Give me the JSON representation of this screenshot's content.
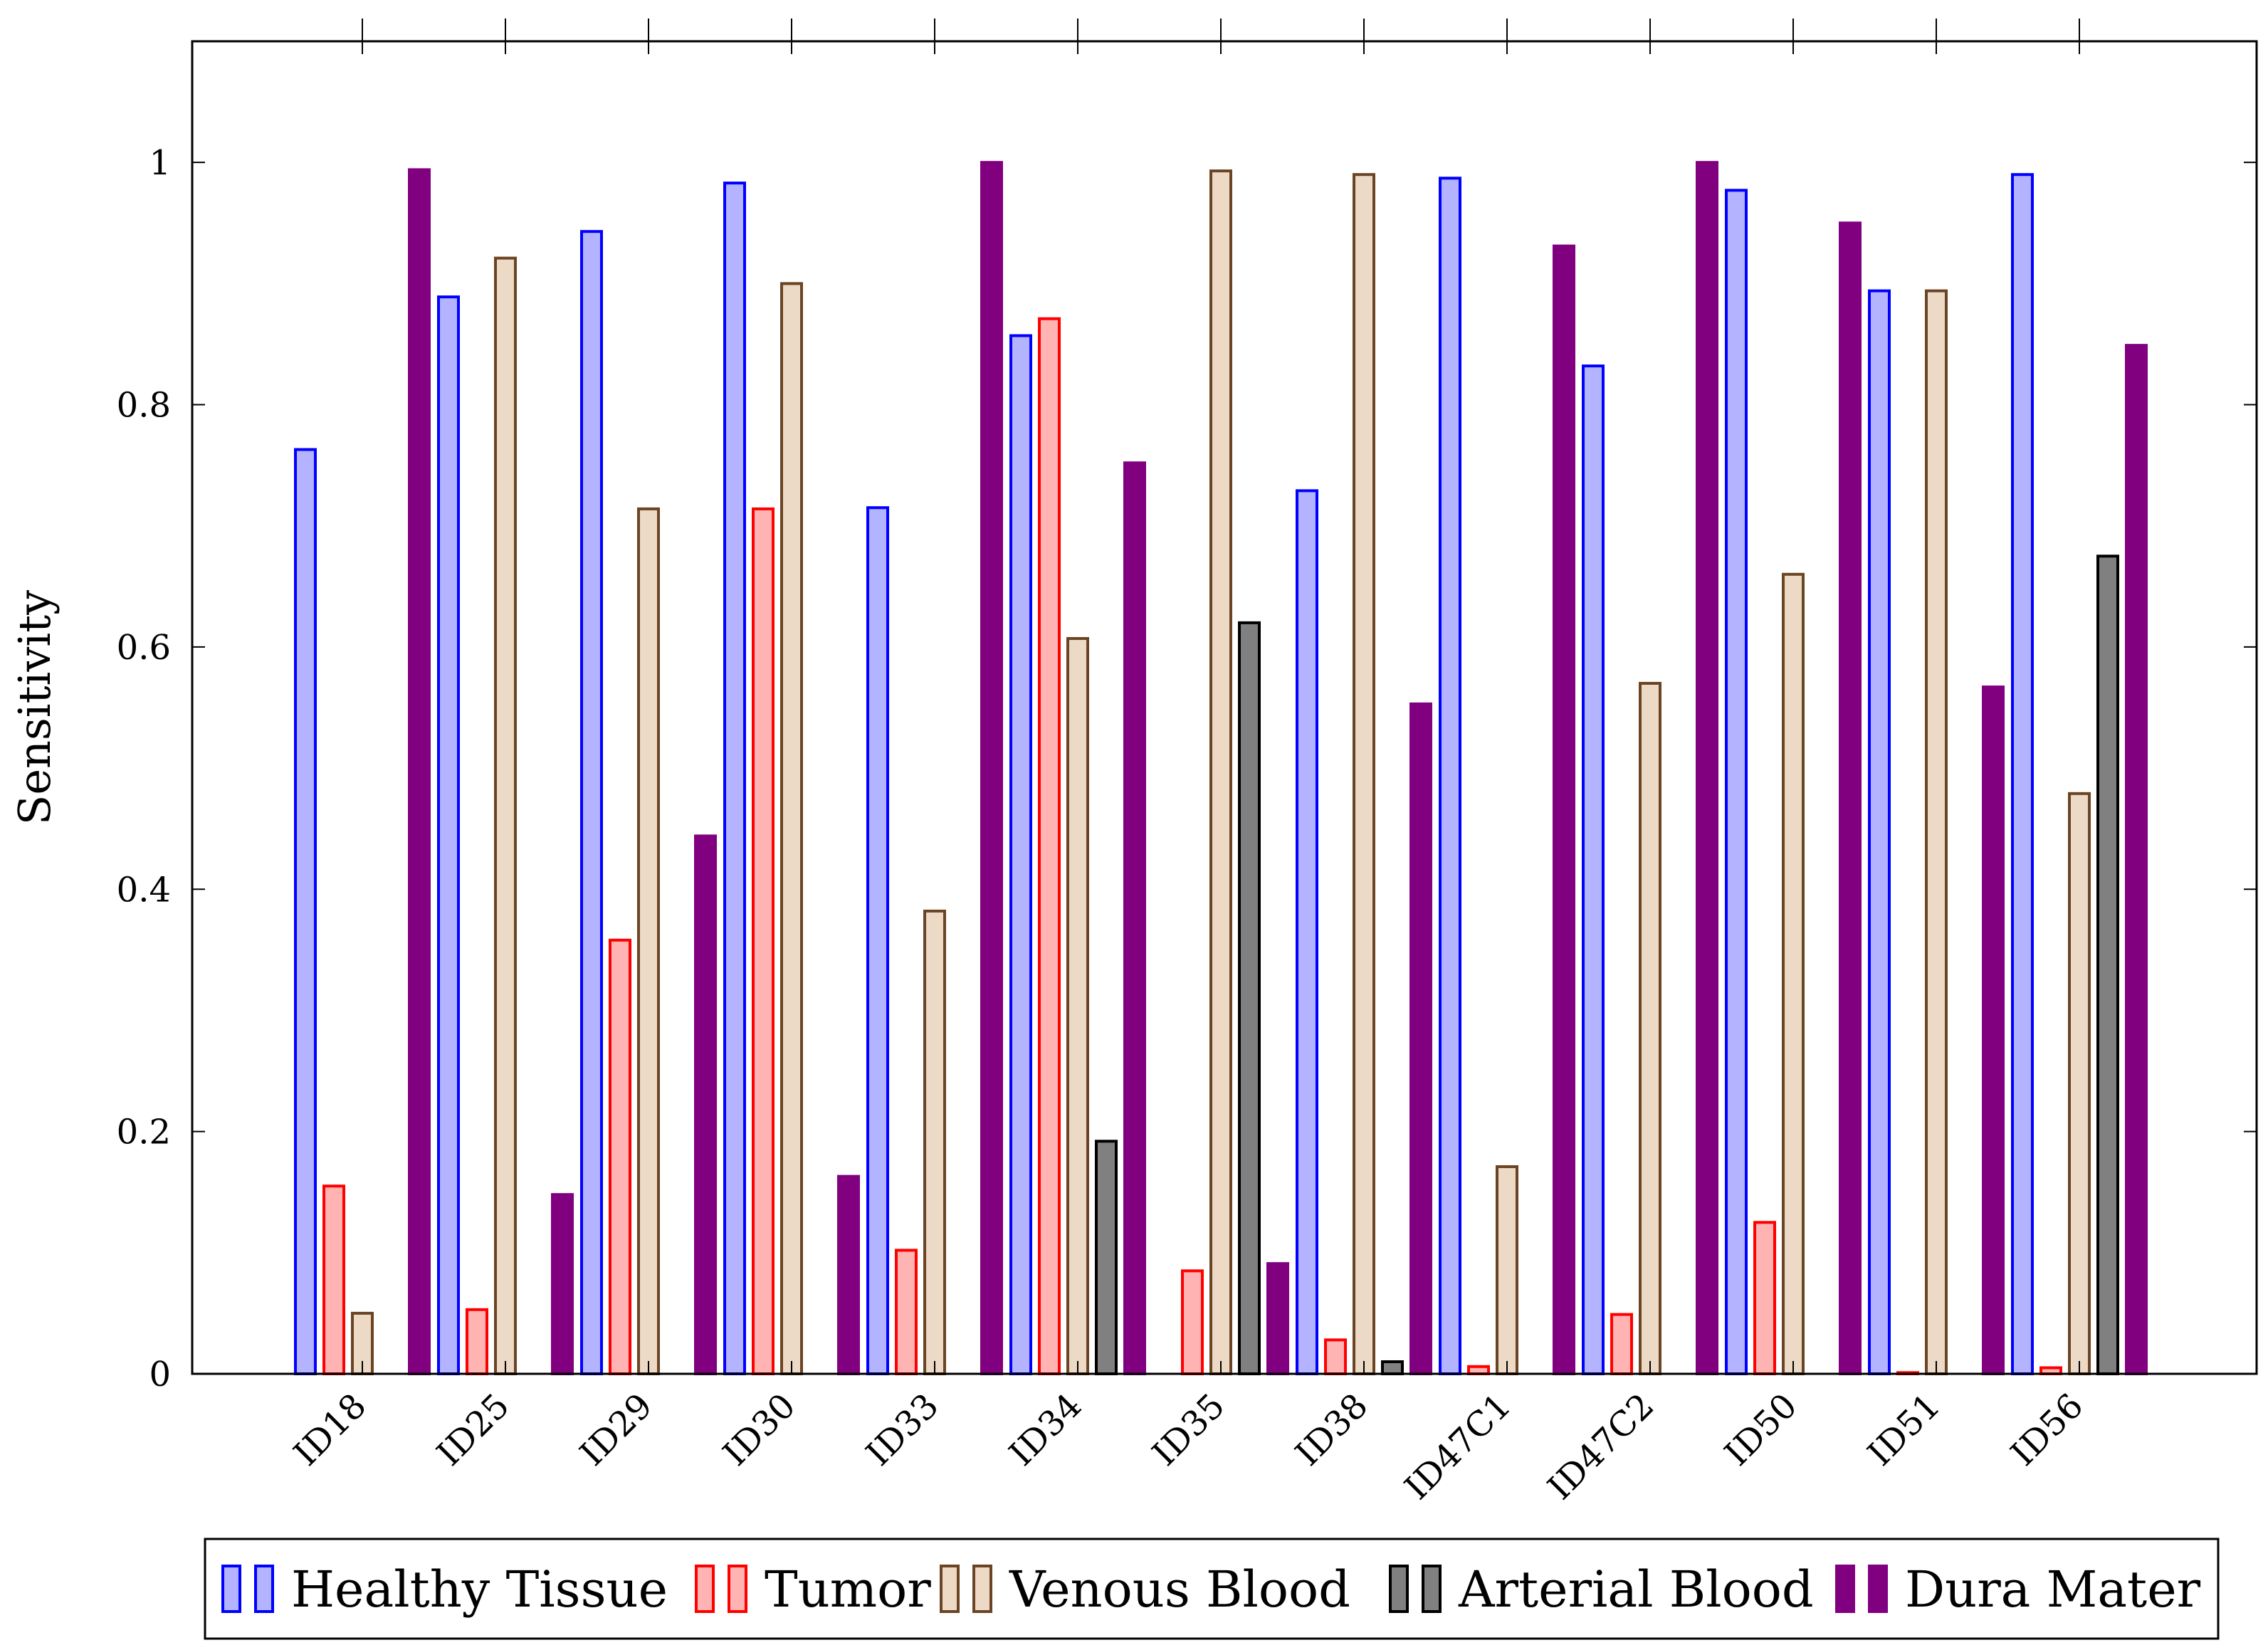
{
  "chart_data": {
    "type": "bar",
    "title": "",
    "xlabel": "",
    "ylabel": "Sensitivity",
    "ylim": [
      0,
      1.1
    ],
    "yticks": [
      0,
      0.2,
      0.4,
      0.6,
      0.8,
      1
    ],
    "ytick_labels": [
      "0",
      "0.2",
      "0.4",
      "0.6",
      "0.8",
      "1"
    ],
    "grid": false,
    "legend_position": "bottom",
    "categories": [
      "ID18",
      "ID25",
      "ID29",
      "ID30",
      "ID33",
      "ID34",
      "ID35",
      "ID38",
      "ID47C1",
      "ID47C2",
      "ID50",
      "ID51",
      "ID56"
    ],
    "series": [
      {
        "name": "Healthy Tissue",
        "fill": "#b3b3ff",
        "stroke": "#0000ff",
        "values": [
          0.763,
          0.889,
          0.943,
          0.983,
          0.715,
          0.857,
          0,
          0.729,
          0.987,
          0.832,
          0.977,
          0.894,
          0.99
        ]
      },
      {
        "name": "Tumor",
        "fill": "#ffb3b3",
        "stroke": "#ff0000",
        "values": [
          0.155,
          0.053,
          0.358,
          0.714,
          0.102,
          0.871,
          0.085,
          0.028,
          0.006,
          0.049,
          0.125,
          0.001,
          0.005
        ]
      },
      {
        "name": "Venous Blood",
        "fill": "#ecd9c6",
        "stroke": "#6b4423",
        "values": [
          0.05,
          0.921,
          0.714,
          0.9,
          0.382,
          0.607,
          0.993,
          0.99,
          0.171,
          0.57,
          0.66,
          0.894,
          0.479
        ]
      },
      {
        "name": "Arterial Blood",
        "fill": "#808080",
        "stroke": "#000000",
        "values": [
          0,
          0,
          0,
          0,
          0,
          0.192,
          0.62,
          0.01,
          0,
          0,
          0,
          0,
          0.675
        ]
      },
      {
        "name": "Dura Mater",
        "fill": "#800080",
        "stroke": "#800080",
        "values": [
          0.994,
          0.148,
          0.444,
          0.163,
          1.0,
          0.752,
          0.091,
          0.553,
          0.931,
          1.0,
          0.95,
          0.567,
          0.849
        ]
      }
    ]
  }
}
